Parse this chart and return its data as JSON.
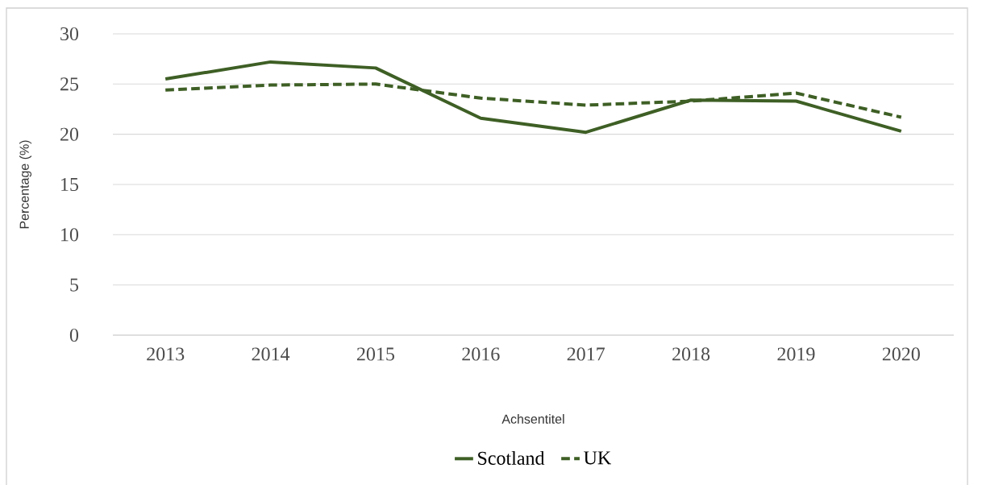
{
  "chart_data": {
    "type": "line",
    "xlabel": "Achsentitel",
    "ylabel": "Percentage (%)",
    "categories": [
      "2013",
      "2014",
      "2015",
      "2016",
      "2017",
      "2018",
      "2019",
      "2020"
    ],
    "series": [
      {
        "name": "Scotland",
        "color": "#3e5f25",
        "line_style": "solid",
        "values": [
          25.5,
          27.2,
          26.6,
          21.6,
          20.2,
          23.4,
          23.3,
          20.3
        ]
      },
      {
        "name": "UK",
        "color": "#3e5f25",
        "line_style": "dashed",
        "values": [
          24.4,
          24.9,
          25.0,
          23.6,
          22.9,
          23.3,
          24.1,
          21.7
        ]
      }
    ],
    "ylim": [
      0,
      30
    ],
    "yticks": [
      0,
      5,
      10,
      15,
      20,
      25,
      30
    ],
    "grid": "y",
    "legend": "bottom"
  }
}
